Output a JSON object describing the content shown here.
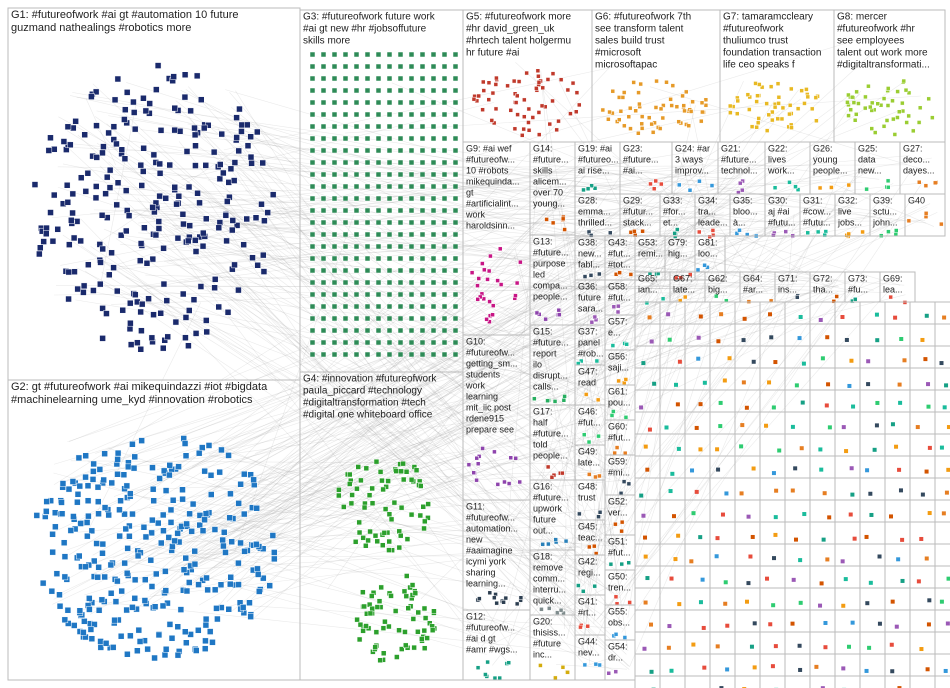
{
  "groups": [
    {
      "lines": [
        "G1: #futureofwork #ai gt #automation 10 future",
        "guzmand nathealings #robotics more"
      ]
    },
    {
      "lines": [
        "G2: gt #futureofwork #ai mikequindazzi #iot #bigdata",
        "#machinelearning ume_kyd #innovation #robotics"
      ]
    },
    {
      "lines": [
        "G3: #futureofwork future work",
        "#ai gt new #hr #jobsoffuture",
        "skills more"
      ]
    },
    {
      "lines": [
        "G4: #innovation #futureofwork",
        "paula_piccard #technology",
        "#digitaltransformation #tech",
        "#digital one whiteboard office"
      ]
    },
    {
      "lines": [
        "G5: #futureofwork more",
        "#hr david_green_uk",
        "#hrtech talent holgermu",
        "hr future #ai"
      ]
    },
    {
      "lines": [
        "G6: #futureofwork 7th",
        "see transform talent",
        "sales build trust",
        "#microsoft",
        "microsoftapac"
      ]
    },
    {
      "lines": [
        "G7: tamaramccleary",
        "#futureofwork",
        "thuliumco trust",
        "foundation transaction",
        "life ceo speaks f"
      ]
    },
    {
      "lines": [
        "G8: mercer",
        "#futureofwork #hr",
        "see employees",
        "talent out work more",
        "#digitaltransformati..."
      ]
    },
    {
      "lines": [
        "G9: #ai wef",
        "#futureofw...",
        "10 #robots",
        "mikequinda...",
        "gt",
        "#artificialint...",
        "work",
        "haroldsinn..."
      ]
    },
    {
      "lines": [
        "G10:",
        "#futureofw...",
        "getting_sm...",
        "students",
        "work",
        "learning",
        "mit_iic post",
        "rdene915",
        "prepare see"
      ]
    },
    {
      "lines": [
        "G11:",
        "#futureofw...",
        "automation...",
        "new",
        "#aaimagine",
        "icymi york",
        "sharing",
        "learning..."
      ]
    },
    {
      "lines": [
        "G12:",
        "#futureofw...",
        "#ai d gt",
        "#amr #wgs..."
      ]
    },
    {
      "lines": [
        "G14:",
        "#future...",
        "skills",
        "alicem...",
        "over 70",
        "young..."
      ]
    },
    {
      "lines": [
        "G13:",
        "#future...",
        "purpose",
        "led",
        "compa...",
        "people..."
      ]
    },
    {
      "lines": [
        "G15:",
        "#future...",
        "report",
        "ilo",
        "disrupt...",
        "calls..."
      ]
    },
    {
      "lines": [
        "G17:",
        "half",
        "#future...",
        "told",
        "people..."
      ]
    },
    {
      "lines": [
        "G16:",
        "#future...",
        "upwork",
        "future",
        "out..."
      ]
    },
    {
      "lines": [
        "G18:",
        "remove",
        "comm...",
        "interru...",
        "quick..."
      ]
    },
    {
      "lines": [
        "G20:",
        "thisiss...",
        "#future",
        "inc..."
      ]
    },
    {
      "lines": [
        "G19: #ai",
        "#futureo...",
        "ai rise..."
      ]
    },
    {
      "lines": [
        "G23:",
        "#future...",
        "#ai..."
      ]
    },
    {
      "lines": [
        "G24: #ar",
        "3 ways",
        "improv..."
      ]
    },
    {
      "lines": [
        "G21:",
        "#future...",
        "technol..."
      ]
    },
    {
      "lines": [
        "G22:",
        "lives",
        "work..."
      ]
    },
    {
      "lines": [
        "G26:",
        "young",
        "people..."
      ]
    },
    {
      "lines": [
        "G25:",
        "data",
        "new..."
      ]
    },
    {
      "lines": [
        "G27:",
        "deco...",
        "dayes..."
      ]
    },
    {
      "lines": [
        "G28:",
        "emma...",
        "thrilled..."
      ]
    },
    {
      "lines": [
        "G29:",
        "#futur...",
        "stack..."
      ]
    },
    {
      "lines": [
        "G33:",
        "#for...",
        "et..."
      ]
    },
    {
      "lines": [
        "G34:",
        "tra...",
        "leade..."
      ]
    },
    {
      "lines": [
        "G35:",
        "bloo...",
        "à..."
      ]
    },
    {
      "lines": [
        "G30:",
        "aj #ai",
        "#futu..."
      ]
    },
    {
      "lines": [
        "G31:",
        "#cow...",
        "#futu..."
      ]
    },
    {
      "lines": [
        "G32:",
        "live",
        "jobs..."
      ]
    },
    {
      "lines": [
        "G39:",
        "sctu...",
        "john..."
      ]
    },
    {
      "lines": [
        "G40"
      ]
    },
    {
      "lines": [
        "G38:",
        "new...",
        "fabl..."
      ]
    },
    {
      "lines": [
        "G43:",
        "#fut...",
        "#tot..."
      ]
    },
    {
      "lines": [
        "G53:",
        "remi..."
      ]
    },
    {
      "lines": [
        "G79:",
        "hig..."
      ]
    },
    {
      "lines": [
        "G81:",
        "loo..."
      ]
    },
    {
      "lines": [
        "G36:",
        "future",
        "sara..."
      ]
    },
    {
      "lines": [
        "G37:",
        "panel",
        "#rob..."
      ]
    },
    {
      "lines": [
        "G47:",
        "read"
      ]
    },
    {
      "lines": [
        "G46:",
        "#fut..."
      ]
    },
    {
      "lines": [
        "G49:",
        "late..."
      ]
    },
    {
      "lines": [
        "G48:",
        "trust"
      ]
    },
    {
      "lines": [
        "G45:",
        "teac..."
      ]
    },
    {
      "lines": [
        "G42:",
        "regi..."
      ]
    },
    {
      "lines": [
        "G41:",
        "#rt..."
      ]
    },
    {
      "lines": [
        "G44:",
        "nev..."
      ]
    },
    {
      "lines": [
        "G58:",
        "#fut..."
      ]
    },
    {
      "lines": [
        "G57:",
        "e..."
      ]
    },
    {
      "lines": [
        "G56:",
        "saji..."
      ]
    },
    {
      "lines": [
        "G61:",
        "pou..."
      ]
    },
    {
      "lines": [
        "G60:",
        "#fut..."
      ]
    },
    {
      "lines": [
        "G59:",
        "#mi..."
      ]
    },
    {
      "lines": [
        "G52:",
        "ver..."
      ]
    },
    {
      "lines": [
        "G51:",
        "#fut..."
      ]
    },
    {
      "lines": [
        "G50:",
        "tren..."
      ]
    },
    {
      "lines": [
        "G55:",
        "obs..."
      ]
    },
    {
      "lines": [
        "G54:",
        "dr..."
      ]
    },
    {
      "lines": [
        "G65:",
        "ian..."
      ]
    },
    {
      "lines": [
        "G67:",
        "late..."
      ]
    },
    {
      "lines": [
        "G62:",
        "big..."
      ]
    },
    {
      "lines": [
        "G64:",
        "#ar..."
      ]
    },
    {
      "lines": [
        "G71:",
        "ins..."
      ]
    },
    {
      "lines": [
        "G72:",
        "tha..."
      ]
    },
    {
      "lines": [
        "G73:",
        "#fu..."
      ]
    },
    {
      "lines": [
        "G69:",
        "lea..."
      ]
    }
  ]
}
